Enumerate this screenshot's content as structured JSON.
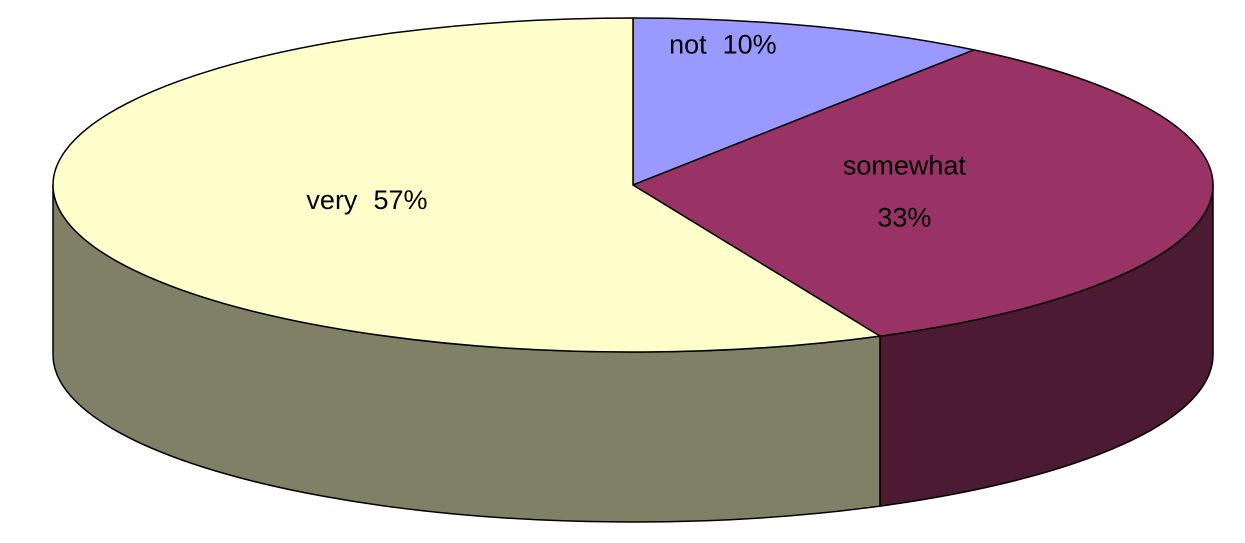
{
  "chart_data": {
    "type": "pie",
    "categories": [
      "not",
      "somewhat",
      "very"
    ],
    "values": [
      10,
      33,
      57
    ],
    "value_labels": [
      "10%",
      "33%",
      "57%"
    ],
    "colors": [
      "#9999ff",
      "#993366",
      "#ffffcc"
    ],
    "side_colors": [
      "#4d4d80",
      "#4d1a33",
      "#808066"
    ]
  }
}
